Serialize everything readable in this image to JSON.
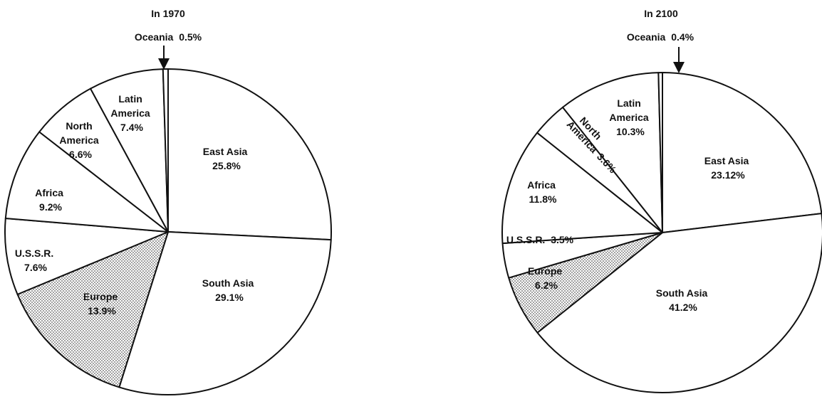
{
  "chart_data": [
    {
      "type": "pie",
      "title": "In 1970",
      "slices": [
        {
          "name": "East Asia",
          "label": "25.8%",
          "value": 25.8,
          "pattern": "none"
        },
        {
          "name": "South Asia",
          "label": "29.1%",
          "value": 29.1,
          "pattern": "none"
        },
        {
          "name": "Europe",
          "label": "13.9%",
          "value": 13.9,
          "pattern": "dots"
        },
        {
          "name": "U.S.S.R.",
          "label": "7.6%",
          "value": 7.6,
          "pattern": "none"
        },
        {
          "name": "Africa",
          "label": "9.2%",
          "value": 9.2,
          "pattern": "none"
        },
        {
          "name": "North America",
          "label": "6.6%",
          "value": 6.6,
          "pattern": "none"
        },
        {
          "name": "Latin America",
          "label": "7.4%",
          "value": 7.4,
          "pattern": "none"
        },
        {
          "name": "Oceania",
          "label": "0.5%",
          "value": 0.5,
          "pattern": "none"
        }
      ],
      "callout": {
        "name": "Oceania",
        "label": "0.5%"
      }
    },
    {
      "type": "pie",
      "title": "In 2100",
      "slices": [
        {
          "name": "East Asia",
          "label": "23.12%",
          "value": 23.12,
          "pattern": "none"
        },
        {
          "name": "South Asia",
          "label": "41.2%",
          "value": 41.2,
          "pattern": "none"
        },
        {
          "name": "Europe",
          "label": "6.2%",
          "value": 6.2,
          "pattern": "dots"
        },
        {
          "name": "U.S.S.R.",
          "label": "3.5%",
          "value": 3.5,
          "pattern": "none"
        },
        {
          "name": "Africa",
          "label": "11.8%",
          "value": 11.8,
          "pattern": "none"
        },
        {
          "name": "North America",
          "label": "3.6%",
          "value": 3.6,
          "pattern": "none"
        },
        {
          "name": "Latin America",
          "label": "10.3%",
          "value": 10.3,
          "pattern": "none"
        },
        {
          "name": "Oceania",
          "label": "0.4%",
          "value": 0.4,
          "pattern": "none"
        }
      ],
      "callout": {
        "name": "Oceania",
        "label": "0.4%"
      }
    }
  ]
}
